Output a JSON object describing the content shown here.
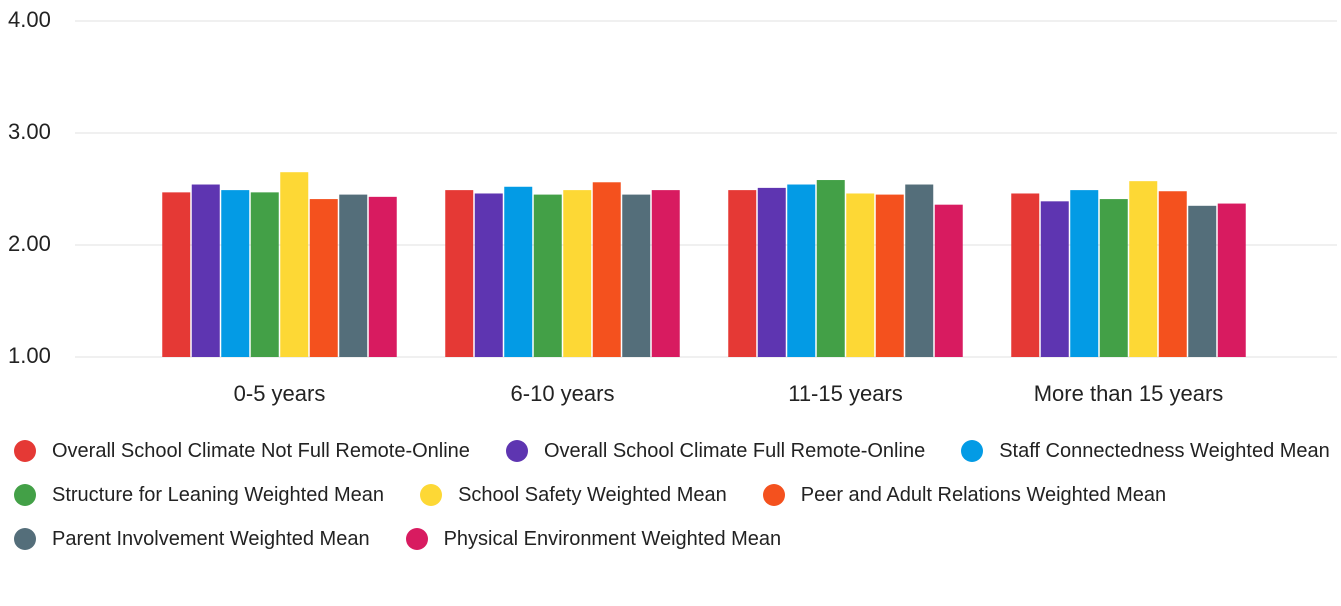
{
  "chart_data": {
    "type": "bar",
    "categories": [
      "0-5 years",
      "6-10 years",
      "11-15 years",
      "More than 15 years"
    ],
    "series": [
      {
        "name": "Overall School Climate Not Full Remote-Online",
        "color": "#e53935",
        "values": [
          2.47,
          2.49,
          2.49,
          2.46
        ]
      },
      {
        "name": "Overall School Climate Full Remote-Online",
        "color": "#5e35b1",
        "values": [
          2.54,
          2.46,
          2.51,
          2.39
        ]
      },
      {
        "name": "Staff Connectedness Weighted Mean",
        "color": "#039be5",
        "values": [
          2.49,
          2.52,
          2.54,
          2.49
        ]
      },
      {
        "name": "Structure for Leaning Weighted Mean",
        "color": "#43a047",
        "values": [
          2.47,
          2.45,
          2.58,
          2.41
        ]
      },
      {
        "name": "School Safety Weighted Mean",
        "color": "#fdd835",
        "values": [
          2.65,
          2.49,
          2.46,
          2.57
        ]
      },
      {
        "name": "Peer and Adult Relations Weighted Mean",
        "color": "#f4511e",
        "values": [
          2.41,
          2.56,
          2.45,
          2.48
        ]
      },
      {
        "name": "Parent Involvement Weighted Mean",
        "color": "#546e7a",
        "values": [
          2.45,
          2.45,
          2.54,
          2.35
        ]
      },
      {
        "name": "Physical Environment Weighted Mean",
        "color": "#d81b60",
        "values": [
          2.43,
          2.49,
          2.36,
          2.37
        ]
      }
    ],
    "ylim": [
      1,
      4
    ],
    "yticks": [
      {
        "value": 1,
        "label": "1.00"
      },
      {
        "value": 2,
        "label": "2.00"
      },
      {
        "value": 3,
        "label": "3.00"
      },
      {
        "value": 4,
        "label": "4.00"
      }
    ],
    "grid": true,
    "legend": "bottom"
  }
}
